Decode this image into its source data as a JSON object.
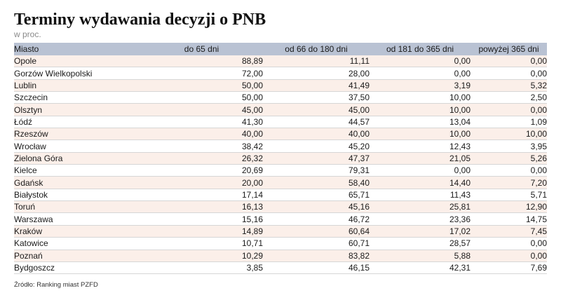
{
  "title": "Terminy wydawania decyzji o PNB",
  "subtitle": "w proc.",
  "source": "Źródło: Ranking miast PZFD",
  "colors": {
    "header_bg": "#b9c2d3",
    "row_alt_bg": "#fbefe9",
    "row_bg": "#ffffff",
    "subtitle_text": "#8a8a8a"
  },
  "chart_data": {
    "type": "table",
    "title": "Terminy wydawania decyzji o PNB",
    "subtitle": "w proc.",
    "columns": [
      "Miasto",
      "do 65 dni",
      "od 66 do 180 dni",
      "od 181 do 365 dni",
      "powyżej 365 dni"
    ],
    "rows": [
      [
        "Opole",
        "88,89",
        "11,11",
        "0,00",
        "0,00"
      ],
      [
        "Gorzów Wielkopolski",
        "72,00",
        "28,00",
        "0,00",
        "0,00"
      ],
      [
        "Lublin",
        "50,00",
        "41,49",
        "3,19",
        "5,32"
      ],
      [
        "Szczecin",
        "50,00",
        "37,50",
        "10,00",
        "2,50"
      ],
      [
        "Olsztyn",
        "45,00",
        "45,00",
        "10,00",
        "0,00"
      ],
      [
        "Łódź",
        "41,30",
        "44,57",
        "13,04",
        "1,09"
      ],
      [
        "Rzeszów",
        "40,00",
        "40,00",
        "10,00",
        "10,00"
      ],
      [
        "Wrocław",
        "38,42",
        "45,20",
        "12,43",
        "3,95"
      ],
      [
        "Zielona Góra",
        "26,32",
        "47,37",
        "21,05",
        "5,26"
      ],
      [
        "Kielce",
        "20,69",
        "79,31",
        "0,00",
        "0,00"
      ],
      [
        "Gdańsk",
        "20,00",
        "58,40",
        "14,40",
        "7,20"
      ],
      [
        "Białystok",
        "17,14",
        "65,71",
        "11,43",
        "5,71"
      ],
      [
        "Toruń",
        "16,13",
        "45,16",
        "25,81",
        "12,90"
      ],
      [
        "Warszawa",
        "15,16",
        "46,72",
        "23,36",
        "14,75"
      ],
      [
        "Kraków",
        "14,89",
        "60,64",
        "17,02",
        "7,45"
      ],
      [
        "Katowice",
        "10,71",
        "60,71",
        "28,57",
        "0,00"
      ],
      [
        "Poznań",
        "10,29",
        "83,82",
        "5,88",
        "0,00"
      ],
      [
        "Bydgoszcz",
        "3,85",
        "46,15",
        "42,31",
        "7,69"
      ]
    ],
    "source": "Źródło: Ranking miast PZFD"
  }
}
